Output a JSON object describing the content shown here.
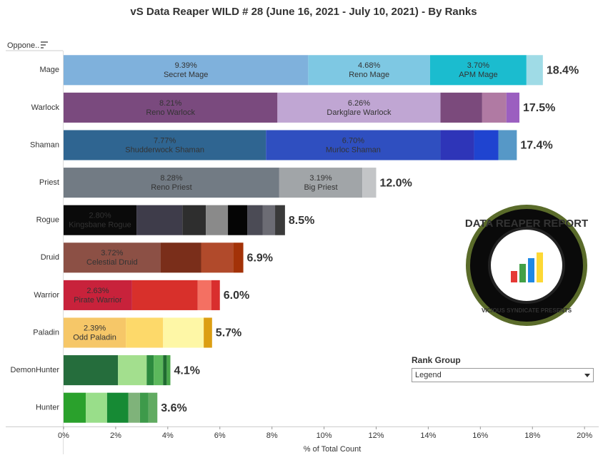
{
  "chart_data": {
    "type": "stacked_bar",
    "title": "vS Data Reaper WILD # 28 (June 16, 2021 - July 10, 2021) - By Ranks",
    "filter_label": "Oppone..",
    "xlabel": "% of Total Count",
    "categories": [
      "Mage",
      "Warlock",
      "Shaman",
      "Priest",
      "Rogue",
      "Druid",
      "Warrior",
      "Paladin",
      "DemonHunter",
      "Hunter"
    ],
    "rows": [
      {
        "values": [
          9.39,
          4.68,
          3.7,
          0.63
        ],
        "labels": [
          "Secret Mage",
          "Reno Mage",
          "APM Mage",
          null
        ],
        "value_labels": [
          "9.39%",
          "4.68%",
          "3.70%",
          null
        ],
        "colors": [
          "#7fb1dc",
          "#7ec8e3",
          "#1bbccf",
          "#9fdbe6"
        ]
      },
      {
        "values": [
          8.21,
          6.26,
          1.6,
          0.93,
          0.5
        ],
        "labels": [
          "Reno Warlock",
          "Darkglare Warlock",
          null,
          null,
          null
        ],
        "value_labels": [
          "8.21%",
          "6.26%",
          null,
          null,
          null
        ],
        "colors": [
          "#7a4a7e",
          "#c0a6d3",
          "#7b4a7c",
          "#b07aa3",
          "#9b5fc0"
        ]
      },
      {
        "values": [
          7.77,
          6.7,
          1.29,
          0.93,
          0.71
        ],
        "labels": [
          "Shudderwock Shaman",
          "Murloc Shaman",
          null,
          null,
          null
        ],
        "value_labels": [
          "7.77%",
          "6.70%",
          null,
          null,
          null
        ],
        "colors": [
          "#2f6591",
          "#2f4fc0",
          "#2e35b8",
          "#1f44d0",
          "#5698c7"
        ]
      },
      {
        "values": [
          8.28,
          3.19,
          0.53
        ],
        "labels": [
          "Reno Priest",
          "Big Priest",
          null
        ],
        "value_labels": [
          "8.28%",
          "3.19%",
          null
        ],
        "colors": [
          "#727b84",
          "#a1a5a8",
          "#c3c5c7"
        ]
      },
      {
        "values": [
          2.8,
          1.76,
          0.9,
          0.85,
          0.74,
          0.6,
          0.47,
          0.38
        ],
        "labels": [
          "Kingsbane Rogue",
          null,
          null,
          null,
          null,
          null,
          null,
          null
        ],
        "value_labels": [
          "2.80%",
          null,
          null,
          null,
          null,
          null,
          null,
          null
        ],
        "colors": [
          "#0a0a0a",
          "#3e3c4a",
          "#2e2e2e",
          "#8a8a8a",
          "#050505",
          "#4b4b55",
          "#6c6c74",
          "#3a3a3a"
        ]
      },
      {
        "values": [
          3.72,
          1.56,
          1.23,
          0.39
        ],
        "labels": [
          "Celestial Druid",
          null,
          null,
          null
        ],
        "value_labels": [
          "3.72%",
          null,
          null,
          null
        ],
        "colors": [
          "#8c5045",
          "#7a2e1a",
          "#b14a2b",
          "#a33208"
        ]
      },
      {
        "values": [
          2.63,
          2.52,
          0.52,
          0.33
        ],
        "labels": [
          "Pirate Warrior",
          null,
          null,
          null
        ],
        "value_labels": [
          "2.63%",
          null,
          null,
          null
        ],
        "colors": [
          "#c8223b",
          "#d8302b",
          "#f47062",
          "#d92e2e"
        ]
      },
      {
        "values": [
          2.39,
          1.43,
          1.56,
          0.32
        ],
        "labels": [
          "Odd Paladin",
          null,
          null,
          null
        ],
        "value_labels": [
          "2.39%",
          null,
          null,
          null
        ],
        "colors": [
          "#f6c768",
          "#fdd96a",
          "#fef7a6",
          "#dc9e12"
        ]
      },
      {
        "values": [
          2.09,
          1.1,
          0.27,
          0.36,
          0.14,
          0.14
        ],
        "labels": [
          null,
          null,
          null,
          null,
          null,
          null
        ],
        "value_labels": [
          null,
          null,
          null,
          null,
          null,
          null
        ],
        "colors": [
          "#256d3c",
          "#a3df8e",
          "#2c8a3e",
          "#5cb85c",
          "#1f6b30",
          "#49a74a"
        ]
      },
      {
        "values": [
          0.85,
          0.82,
          0.82,
          0.44,
          0.33,
          0.34
        ],
        "labels": [
          null,
          null,
          null,
          null,
          null,
          null
        ],
        "value_labels": [
          null,
          null,
          null,
          null,
          null,
          null
        ],
        "colors": [
          "#2aa12c",
          "#99de8a",
          "#168a34",
          "#7fb37a",
          "#3e9a4a",
          "#61ab61"
        ]
      }
    ],
    "totals": [
      18.4,
      17.5,
      17.4,
      12.0,
      8.5,
      6.9,
      6.0,
      5.7,
      4.1,
      3.6
    ],
    "total_labels": [
      "18.4%",
      "17.5%",
      "17.4%",
      "12.0%",
      "8.5%",
      "6.9%",
      "6.0%",
      "5.7%",
      "4.1%",
      "3.6%"
    ],
    "xlim": [
      0,
      20.27
    ],
    "xticks": [
      {
        "value": 0,
        "label": "0%"
      },
      {
        "value": 2,
        "label": "2%"
      },
      {
        "value": 4,
        "label": "4%"
      },
      {
        "value": 6,
        "label": "6%"
      },
      {
        "value": 8,
        "label": "8%"
      },
      {
        "value": 10,
        "label": "10%"
      },
      {
        "value": 12,
        "label": "12%"
      },
      {
        "value": 14,
        "label": "14%"
      },
      {
        "value": 16,
        "label": "16%"
      },
      {
        "value": 18,
        "label": "18%"
      },
      {
        "value": 20,
        "label": "20%"
      }
    ],
    "grid": false,
    "legend": {
      "title": "Rank Group",
      "value": "Legend"
    }
  },
  "logo": {
    "title": "DATA REAPER REPORT",
    "subtitle": "VICIOUS SYNDICATE PRESENTS"
  }
}
